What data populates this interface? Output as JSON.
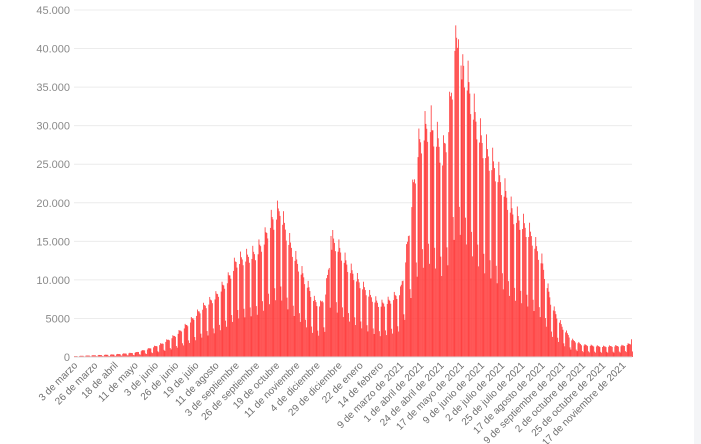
{
  "chart_data": {
    "type": "bar",
    "title": "",
    "xlabel": "",
    "ylabel": "",
    "ylim": [
      0,
      45000
    ],
    "y_ticks": [
      {
        "value": 0,
        "label": "0"
      },
      {
        "value": 5000,
        "label": "5000"
      },
      {
        "value": 10000,
        "label": "10.000"
      },
      {
        "value": 15000,
        "label": "15.000"
      },
      {
        "value": 20000,
        "label": "20.000"
      },
      {
        "value": 25000,
        "label": "25.000"
      },
      {
        "value": 30000,
        "label": "30.000"
      },
      {
        "value": 35000,
        "label": "35.000"
      },
      {
        "value": 40000,
        "label": "40.000"
      },
      {
        "value": 45000,
        "label": "45.000"
      }
    ],
    "x_start": "2020-03-03",
    "x_end": "2021-11-28",
    "x_ticks": [
      {
        "date": "2020-03-03",
        "label": "3 de marzo"
      },
      {
        "date": "2020-03-26",
        "label": "26 de marzo"
      },
      {
        "date": "2020-04-18",
        "label": "18 de abril"
      },
      {
        "date": "2020-05-11",
        "label": "11 de mayo"
      },
      {
        "date": "2020-06-03",
        "label": "3 de junio"
      },
      {
        "date": "2020-06-26",
        "label": "26 de junio"
      },
      {
        "date": "2020-07-19",
        "label": "19 de julio"
      },
      {
        "date": "2020-08-11",
        "label": "11 de agosto"
      },
      {
        "date": "2020-09-03",
        "label": "3 de septiembre"
      },
      {
        "date": "2020-09-26",
        "label": "26 de septiembre"
      },
      {
        "date": "2020-10-19",
        "label": "19 de octubre"
      },
      {
        "date": "2020-11-11",
        "label": "11 de noviembre"
      },
      {
        "date": "2020-12-04",
        "label": "4 de diciembre"
      },
      {
        "date": "2020-12-29",
        "label": "29 de diciembre"
      },
      {
        "date": "2021-01-22",
        "label": "22 de enero"
      },
      {
        "date": "2021-02-14",
        "label": "14 de febrero"
      },
      {
        "date": "2021-03-09",
        "label": "9 de marzo de 2021"
      },
      {
        "date": "2021-04-01",
        "label": "1 de abril de 2021"
      },
      {
        "date": "2021-04-24",
        "label": "24 de abril de 2021"
      },
      {
        "date": "2021-05-17",
        "label": "17 de mayo de 2021"
      },
      {
        "date": "2021-06-09",
        "label": "9 de junio de 2021"
      },
      {
        "date": "2021-07-02",
        "label": "2 de julio de 2021"
      },
      {
        "date": "2021-07-25",
        "label": "25 de julio de 2021"
      },
      {
        "date": "2021-08-17",
        "label": "17 de agosto de 2021"
      },
      {
        "date": "2021-09-09",
        "label": "9 de septiembre de 2021"
      },
      {
        "date": "2021-10-02",
        "label": "2 de octubre de 2021"
      },
      {
        "date": "2021-10-25",
        "label": "25 de octubre de 2021"
      },
      {
        "date": "2021-11-17",
        "label": "17 de noviembre de 2021"
      }
    ],
    "trend_points": [
      [
        "2020-03-03",
        100
      ],
      [
        "2020-04-18",
        300
      ],
      [
        "2020-05-11",
        500
      ],
      [
        "2020-05-25",
        900
      ],
      [
        "2020-06-10",
        1500
      ],
      [
        "2020-06-26",
        2500
      ],
      [
        "2020-07-10",
        3800
      ],
      [
        "2020-07-25",
        5500
      ],
      [
        "2020-08-11",
        7000
      ],
      [
        "2020-08-25",
        9000
      ],
      [
        "2020-09-03",
        11000
      ],
      [
        "2020-09-15",
        11500
      ],
      [
        "2020-09-26",
        12000
      ],
      [
        "2020-10-05",
        13500
      ],
      [
        "2020-10-12",
        15500
      ],
      [
        "2020-10-19",
        16500
      ],
      [
        "2020-10-23",
        17000
      ],
      [
        "2020-10-31",
        14000
      ],
      [
        "2020-11-11",
        11000
      ],
      [
        "2020-11-20",
        9000
      ],
      [
        "2020-12-01",
        6500
      ],
      [
        "2020-12-08",
        6000
      ],
      [
        "2020-12-14",
        7500
      ],
      [
        "2020-12-18",
        11000
      ],
      [
        "2020-12-22",
        13500
      ],
      [
        "2020-12-29",
        12500
      ],
      [
        "2021-01-08",
        10500
      ],
      [
        "2021-01-22",
        8500
      ],
      [
        "2021-02-03",
        7000
      ],
      [
        "2021-02-14",
        6000
      ],
      [
        "2021-02-25",
        6500
      ],
      [
        "2021-03-09",
        7500
      ],
      [
        "2021-03-16",
        12000
      ],
      [
        "2021-03-22",
        18000
      ],
      [
        "2021-03-29",
        24000
      ],
      [
        "2021-04-05",
        26000
      ],
      [
        "2021-04-12",
        27000
      ],
      [
        "2021-04-20",
        25000
      ],
      [
        "2021-04-26",
        23000
      ],
      [
        "2021-05-03",
        27000
      ],
      [
        "2021-05-08",
        33000
      ],
      [
        "2021-05-12",
        36000
      ],
      [
        "2021-05-17",
        35000
      ],
      [
        "2021-05-24",
        32000
      ],
      [
        "2021-06-01",
        28000
      ],
      [
        "2021-06-09",
        25000
      ],
      [
        "2021-06-18",
        23000
      ],
      [
        "2021-06-26",
        21500
      ],
      [
        "2021-07-06",
        19000
      ],
      [
        "2021-07-15",
        16500
      ],
      [
        "2021-07-25",
        15500
      ],
      [
        "2021-08-05",
        14000
      ],
      [
        "2021-08-17",
        11000
      ],
      [
        "2021-08-28",
        6000
      ],
      [
        "2021-09-09",
        3500
      ],
      [
        "2021-09-20",
        2000
      ],
      [
        "2021-10-02",
        1400
      ],
      [
        "2021-10-25",
        1200
      ],
      [
        "2021-11-17",
        1300
      ],
      [
        "2021-11-28",
        1600
      ]
    ],
    "series": [
      {
        "color": "#ff3b3b",
        "peaks": [
          [
            "2020-10-16",
            16500
          ],
          [
            "2020-10-23",
            18300
          ],
          [
            "2020-12-20",
            15700
          ],
          [
            "2021-04-14",
            29400
          ],
          [
            "2021-05-10",
            39700
          ],
          [
            "2021-05-14",
            41200
          ],
          [
            "2021-05-18",
            36000
          ],
          [
            "2021-11-27",
            2300
          ]
        ]
      }
    ],
    "grid": true,
    "legend": "none"
  }
}
